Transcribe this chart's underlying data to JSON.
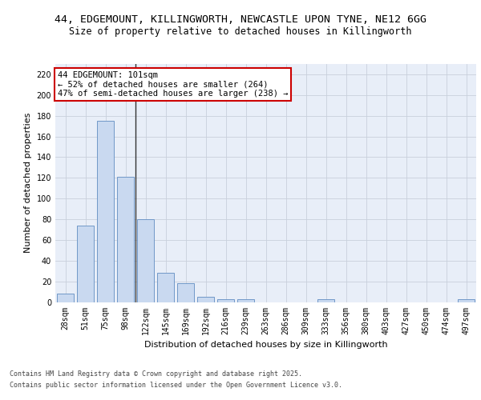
{
  "title_line1": "44, EDGEMOUNT, KILLINGWORTH, NEWCASTLE UPON TYNE, NE12 6GG",
  "title_line2": "Size of property relative to detached houses in Killingworth",
  "xlabel": "Distribution of detached houses by size in Killingworth",
  "ylabel": "Number of detached properties",
  "categories": [
    "28sqm",
    "51sqm",
    "75sqm",
    "98sqm",
    "122sqm",
    "145sqm",
    "169sqm",
    "192sqm",
    "216sqm",
    "239sqm",
    "263sqm",
    "286sqm",
    "309sqm",
    "333sqm",
    "356sqm",
    "380sqm",
    "403sqm",
    "427sqm",
    "450sqm",
    "474sqm",
    "497sqm"
  ],
  "values": [
    8,
    74,
    175,
    121,
    80,
    28,
    18,
    5,
    3,
    3,
    0,
    0,
    0,
    3,
    0,
    0,
    0,
    0,
    0,
    0,
    3
  ],
  "bar_color": "#c9d9f0",
  "bar_edge_color": "#7098c8",
  "annotation_text": "44 EDGEMOUNT: 101sqm\n← 52% of detached houses are smaller (264)\n47% of semi-detached houses are larger (238) →",
  "annotation_box_color": "#ffffff",
  "annotation_box_edge_color": "#cc0000",
  "vline_x_index": 3.5,
  "vline_color": "#333333",
  "ylim": [
    0,
    230
  ],
  "yticks": [
    0,
    20,
    40,
    60,
    80,
    100,
    120,
    140,
    160,
    180,
    200,
    220
  ],
  "grid_color": "#c8d0dc",
  "background_color": "#e8eef8",
  "footer_line1": "Contains HM Land Registry data © Crown copyright and database right 2025.",
  "footer_line2": "Contains public sector information licensed under the Open Government Licence v3.0.",
  "title_fontsize": 9.5,
  "subtitle_fontsize": 8.5,
  "axis_label_fontsize": 8,
  "tick_fontsize": 7,
  "annotation_fontsize": 7.5,
  "footer_fontsize": 6
}
